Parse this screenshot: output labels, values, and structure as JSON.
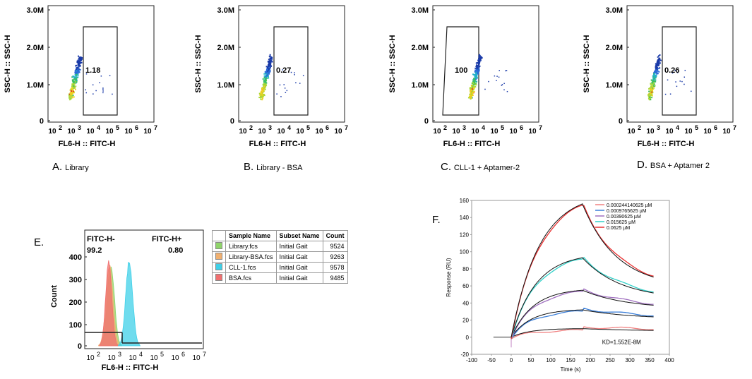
{
  "facs_panels": [
    {
      "letter": "A.",
      "title": "Library",
      "gate_value": "1.18",
      "xlabel": "FL6-H :: FITC-H",
      "ylabel": "SSC-H :: SSC-H",
      "yticks": [
        "3.0M",
        "2.0M",
        "1.0M",
        "0"
      ],
      "xticks": [
        "10",
        "2",
        "10",
        "3",
        "10",
        "4",
        "10",
        "5",
        "10",
        "6",
        "10",
        "7"
      ]
    },
    {
      "letter": "B.",
      "title": "Library - BSA",
      "gate_value": "0.27",
      "xlabel": "FL6-H :: FITC-H",
      "ylabel": "SSC-H :: SSC-H",
      "yticks": [
        "3.0M",
        "2.0M",
        "1.0M",
        "0"
      ],
      "xticks": [
        "10",
        "2",
        "10",
        "3",
        "10",
        "4",
        "10",
        "5",
        "10",
        "6",
        "10",
        "7"
      ]
    },
    {
      "letter": "C.",
      "title": "CLL-1 + Aptamer-2",
      "gate_value": "100",
      "xlabel": "FL6-H :: FITC-H",
      "ylabel": "SSC-H :: SSC-H",
      "yticks": [
        "3.0M",
        "2.0M",
        "1.0M",
        "0"
      ],
      "xticks": [
        "10",
        "2",
        "10",
        "3",
        "10",
        "4",
        "10",
        "5",
        "10",
        "6",
        "10",
        "7"
      ]
    },
    {
      "letter": "D.",
      "title": "BSA + Aptamer 2",
      "gate_value": "0.26",
      "xlabel": "FL6-H :: FITC-H",
      "ylabel": "SSC-H :: SSC-H",
      "yticks": [
        "3.0M",
        "2.0M",
        "1.0M",
        "0"
      ],
      "xticks": [
        "10",
        "2",
        "10",
        "3",
        "10",
        "4",
        "10",
        "5",
        "10",
        "6",
        "10",
        "7"
      ]
    }
  ],
  "histogram": {
    "letter": "E.",
    "gate_neg_label": "FITC-H-",
    "gate_neg_value": "99.2",
    "gate_pos_label": "FITC-H+",
    "gate_pos_value": "0.80",
    "xlabel": "FL6-H :: FITC-H",
    "ylabel": "Count",
    "yticks": [
      "400",
      "300",
      "200",
      "100",
      "0"
    ],
    "xticks": [
      "10",
      "2",
      "10",
      "3",
      "10",
      "4",
      "10",
      "5",
      "10",
      "6",
      "10",
      "7"
    ],
    "table_headers": [
      "Sample Name",
      "Subset Name",
      "Count"
    ],
    "rows": [
      {
        "name": "Library.fcs",
        "subset": "Initial Gait",
        "count": "9524",
        "color": "#8fd46a"
      },
      {
        "name": "Library-BSA.fcs",
        "subset": "Initial Gait",
        "count": "9263",
        "color": "#f0b070"
      },
      {
        "name": "CLL-1.fcs",
        "subset": "Initial Gait",
        "count": "9578",
        "color": "#3fd0e8"
      },
      {
        "name": "BSA.fcs",
        "subset": "Initial Gait",
        "count": "9485",
        "color": "#f07070"
      }
    ]
  },
  "chart_data": {
    "type": "line",
    "letter": "F.",
    "xlabel": "Time (s)",
    "ylabel": "Response (RU)",
    "xlim": [
      -100,
      400
    ],
    "ylim": [
      -20,
      160
    ],
    "xticks": [
      "-100",
      "-50",
      "0",
      "50",
      "100",
      "150",
      "200",
      "250",
      "300",
      "350",
      "400"
    ],
    "yticks": [
      "160",
      "140",
      "120",
      "100",
      "80",
      "60",
      "40",
      "20",
      "0",
      "-20"
    ],
    "annotation": "KD=1.552E-8M",
    "series": [
      {
        "name": "0.000244140625 µM",
        "color": "#f08080",
        "rmax": 10,
        "end": 7
      },
      {
        "name": "0.0009765625 µM",
        "color": "#3a7ed8",
        "rmax": 32,
        "end": 21
      },
      {
        "name": "0.00390625 µM",
        "color": "#a070c0",
        "rmax": 55,
        "end": 33
      },
      {
        "name": "0.015625 µM",
        "color": "#30d0c8",
        "rmax": 93,
        "end": 44
      },
      {
        "name": "0.0625 µM",
        "color": "#e83030",
        "rmax": 156,
        "end": 58
      }
    ]
  }
}
